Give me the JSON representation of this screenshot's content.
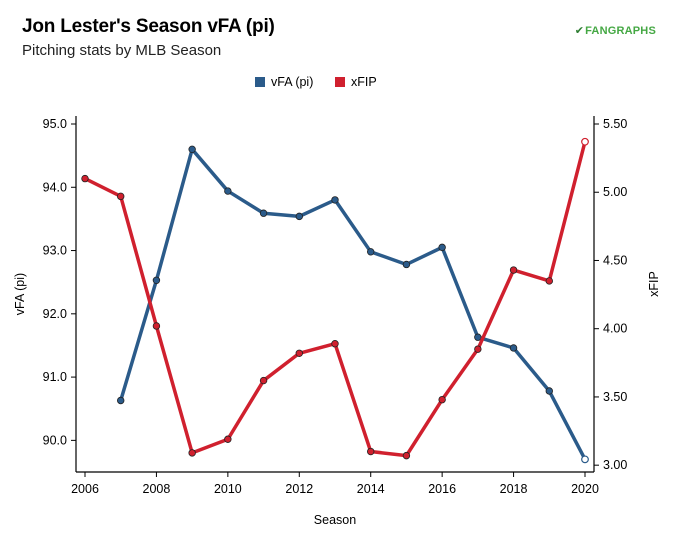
{
  "header": {
    "title": "Jon Lester's Season vFA (pi)",
    "subtitle": "Pitching stats by MLB Season",
    "logo_text": "FANGRAPHS",
    "logo_icon": "fangraphs-leaf-icon"
  },
  "colors": {
    "vfa": "#2b5b8a",
    "xfip": "#d0202e",
    "axis": "#000000"
  },
  "chart_data": {
    "type": "line",
    "title": "Jon Lester's Season vFA (pi)",
    "subtitle": "Pitching stats by MLB Season",
    "xlabel": "Season",
    "ylabel_left": "vFA (pi)",
    "ylabel_right": "xFIP",
    "x": [
      2006,
      2007,
      2008,
      2009,
      2010,
      2011,
      2012,
      2013,
      2014,
      2015,
      2016,
      2017,
      2018,
      2019,
      2020
    ],
    "x_ticks": [
      "2006",
      "2008",
      "2010",
      "2012",
      "2014",
      "2016",
      "2018",
      "2020"
    ],
    "xlim": [
      2006,
      2020
    ],
    "y_left_ticks": [
      "90.0",
      "91.0",
      "92.0",
      "93.0",
      "94.0",
      "95.0"
    ],
    "y_left_lim": [
      89.5,
      95.0
    ],
    "y_right_ticks": [
      "3.00",
      "3.50",
      "4.00",
      "4.50",
      "5.00",
      "5.50"
    ],
    "y_right_lim": [
      2.95,
      5.5
    ],
    "legend_position": "top-center",
    "grid": false,
    "series": [
      {
        "name": "vFA (pi)",
        "axis": "left",
        "values": [
          null,
          90.63,
          92.53,
          94.6,
          93.94,
          93.59,
          93.54,
          93.8,
          92.98,
          92.78,
          93.05,
          91.63,
          91.46,
          90.78,
          89.7
        ]
      },
      {
        "name": "xFIP",
        "axis": "right",
        "values": [
          5.1,
          4.97,
          4.02,
          3.09,
          3.19,
          3.62,
          3.82,
          3.89,
          3.1,
          3.07,
          3.48,
          3.85,
          4.43,
          4.35,
          5.37
        ]
      }
    ]
  }
}
